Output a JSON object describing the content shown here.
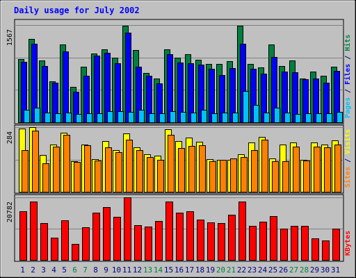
{
  "chart_data": {
    "type": "bar",
    "title": "Daily usage for July 2002",
    "categories": [
      "1",
      "2",
      "3",
      "4",
      "5",
      "6",
      "7",
      "8",
      "9",
      "10",
      "11",
      "12",
      "13",
      "14",
      "15",
      "16",
      "17",
      "18",
      "19",
      "20",
      "21",
      "22",
      "23",
      "24",
      "25",
      "26",
      "27",
      "28",
      "29",
      "30",
      "31"
    ],
    "weekend_days": [
      "6",
      "7",
      "13",
      "14",
      "20",
      "21",
      "27",
      "28"
    ],
    "panels": [
      {
        "id": "top",
        "ymax_label": "1567",
        "ymax": 1567,
        "legend": [
          {
            "text": "Pages",
            "color": "#00c0ff"
          },
          {
            "text": " / ",
            "color": "#000080"
          },
          {
            "text": "Files",
            "color": "#0000ff"
          },
          {
            "text": " / ",
            "color": "#000080"
          },
          {
            "text": "Hits",
            "color": "#008040"
          }
        ],
        "series": [
          {
            "name": "Hits",
            "color": "#008040",
            "values": [
              1020,
              1340,
              995,
              660,
              1255,
              570,
              890,
              1105,
              1180,
              1040,
              1560,
              1160,
              790,
              700,
              1180,
              1040,
              1100,
              1010,
              940,
              940,
              985,
              1560,
              940,
              880,
              1250,
              905,
              1000,
              710,
              815,
              745,
              895
            ]
          },
          {
            "name": "Files",
            "color": "#0000ff",
            "values": [
              970,
              1260,
              905,
              640,
              1140,
              490,
              755,
              1080,
              1120,
              955,
              1440,
              900,
              750,
              625,
              1100,
              960,
              950,
              930,
              860,
              760,
              875,
              1270,
              865,
              780,
              1050,
              815,
              810,
              690,
              710,
              640,
              825
            ]
          },
          {
            "name": "Pages",
            "color": "#00c0ff",
            "values": [
              200,
              240,
              160,
              140,
              160,
              130,
              140,
              140,
              175,
              175,
              170,
              205,
              140,
              140,
              180,
              170,
              160,
              205,
              145,
              160,
              160,
              500,
              275,
              155,
              230,
              155,
              135,
              150,
              140,
              140,
              165
            ]
          }
        ]
      },
      {
        "id": "mid",
        "ymax_label": "284",
        "ymax": 284,
        "legend": [
          {
            "text": "Sites",
            "color": "#ff8000"
          },
          {
            "text": " / ",
            "color": "#000080"
          },
          {
            "text": "Visits",
            "color": "#ffff00"
          }
        ],
        "series": [
          {
            "name": "Visits",
            "color": "#ffff00",
            "values": [
              277,
              283,
              162,
              207,
              259,
              134,
              207,
              145,
              224,
              184,
              255,
              195,
              165,
              158,
              276,
              224,
              238,
              221,
              145,
              140,
              140,
              166,
              218,
              241,
              147,
              208,
              217,
              139,
              218,
              208,
              227
            ]
          },
          {
            "name": "Sites",
            "color": "#ff8000",
            "values": [
              183,
              268,
              124,
              198,
              250,
              130,
              204,
              136,
              195,
              174,
              228,
              182,
              153,
              141,
              250,
              192,
              202,
              204,
              134,
              139,
              148,
              153,
              182,
              229,
              133,
              134,
              199,
              138,
              197,
              195,
              207
            ]
          }
        ]
      },
      {
        "id": "bot",
        "ymax_label": "20782",
        "ymax": 20782,
        "legend": [
          {
            "text": "KBytes",
            "color": "#ff0000"
          }
        ],
        "series": [
          {
            "name": "KBytes",
            "color": "#ff0000",
            "values": [
              16200,
              19400,
              12200,
              7500,
              13200,
              5400,
              10800,
              15600,
              17500,
              14400,
              20782,
              11500,
              11000,
              13000,
              19400,
              15700,
              16200,
              13400,
              12500,
              12300,
              15100,
              19400,
              11200,
              12800,
              14600,
              10400,
              11200,
              11200,
              7100,
              6500,
              10400
            ]
          }
        ]
      }
    ]
  }
}
